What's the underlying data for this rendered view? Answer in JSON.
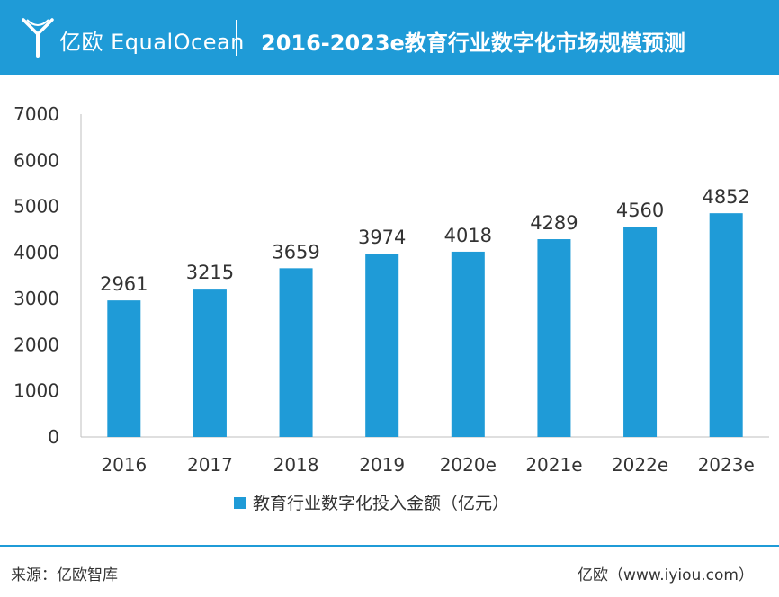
{
  "header": {
    "logo_text": "亿欧 EqualOcean",
    "title": "2016-2023e教育行业数字化市场规模预测",
    "background_color": "#1f9bd7"
  },
  "chart_data": {
    "type": "bar",
    "categories": [
      "2016",
      "2017",
      "2018",
      "2019",
      "2020e",
      "2021e",
      "2022e",
      "2023e"
    ],
    "series": [
      {
        "name": "教育行业数字化投入金额（亿元）",
        "values": [
          2961,
          3215,
          3659,
          3974,
          4018,
          4289,
          4560,
          4852
        ],
        "color": "#1f9bd7"
      }
    ],
    "y_ticks": [
      "0",
      "1000",
      "2000",
      "3000",
      "4000",
      "5000",
      "6000",
      "7000"
    ],
    "ylim": [
      0,
      7000
    ],
    "grid": false,
    "legend_position": "bottom",
    "data_labels": true
  },
  "footer": {
    "source": "来源：亿欧智库",
    "site": "亿欧（www.iyiou.com）"
  }
}
